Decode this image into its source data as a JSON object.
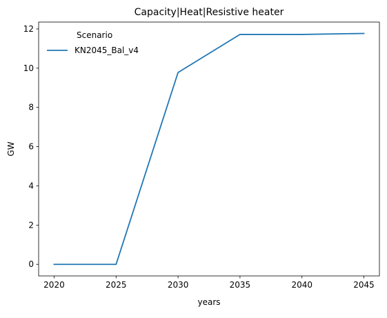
{
  "chart_data": {
    "type": "line",
    "title": "Capacity|Heat|Resistive heater",
    "xlabel": "years",
    "ylabel": "GW",
    "x": [
      2020,
      2025,
      2030,
      2035,
      2040,
      2045
    ],
    "xticks": [
      2020,
      2025,
      2030,
      2035,
      2040,
      2045
    ],
    "yticks": [
      0,
      2,
      4,
      6,
      8,
      10,
      12
    ],
    "xlim": [
      2018.75,
      2046.25
    ],
    "ylim": [
      -0.59,
      12.35
    ],
    "grid": false,
    "legend": {
      "title": "Scenario",
      "placement": "top-left"
    },
    "series": [
      {
        "name": "KN2045_Bal_v4",
        "color": "#1f77b4",
        "values": [
          0.0,
          0.0,
          9.78,
          11.72,
          11.72,
          11.77
        ]
      }
    ]
  }
}
